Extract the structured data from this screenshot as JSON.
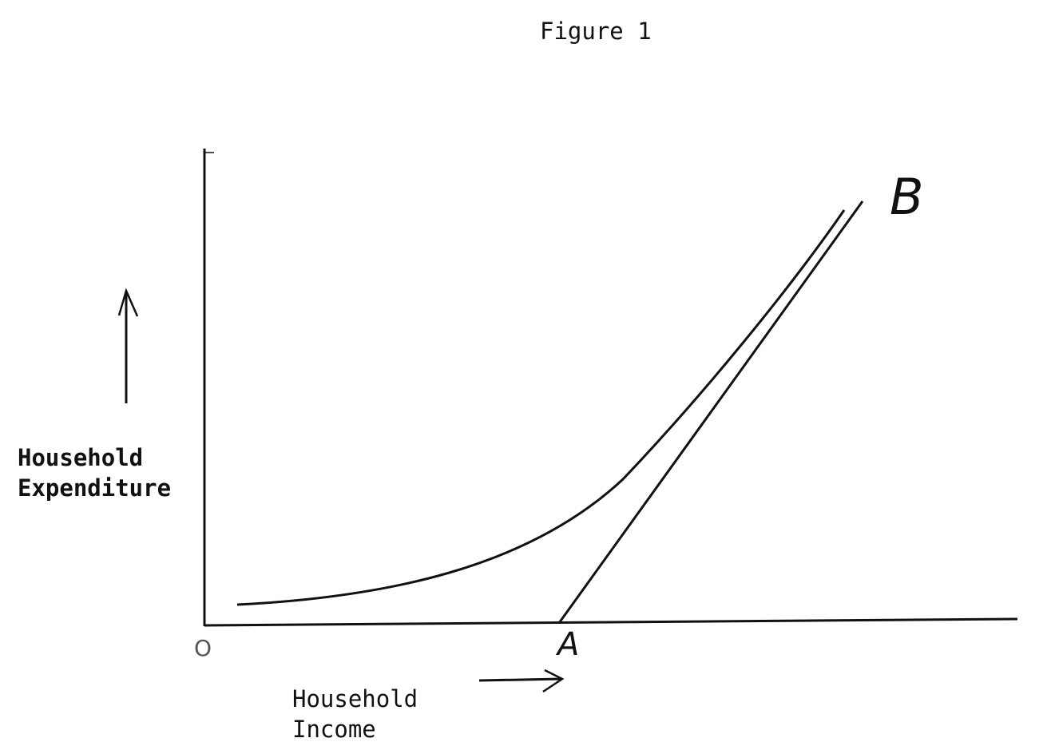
{
  "figure": {
    "title": "Figure 1",
    "y_axis_label_line1": "Household",
    "y_axis_label_line2": "Expenditure",
    "x_axis_label_line1": "Household",
    "x_axis_label_line2": "Income",
    "origin_label": "O",
    "point_a_label": "A",
    "point_b_label": "B"
  },
  "colors": {
    "ink": "#111111",
    "paper": "#ffffff"
  }
}
